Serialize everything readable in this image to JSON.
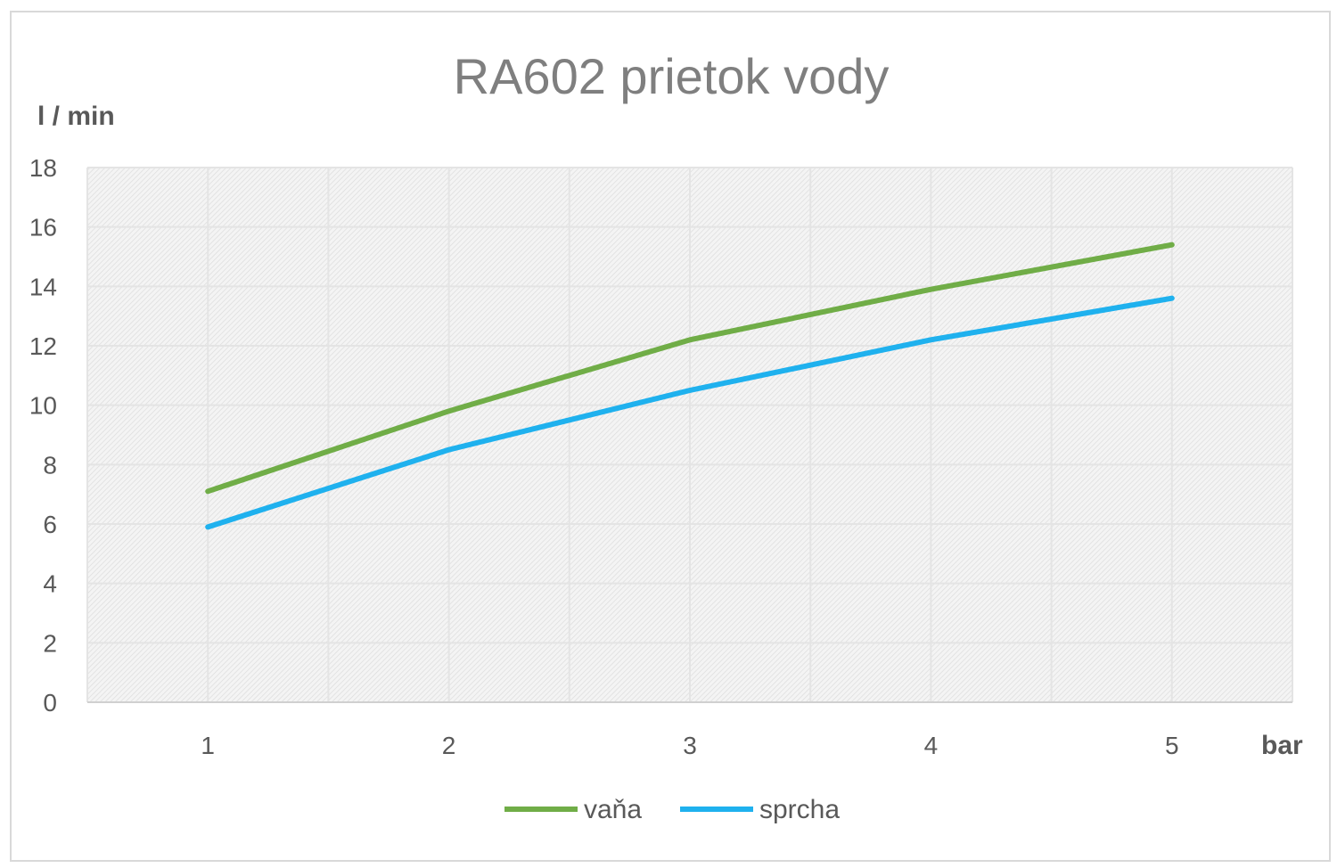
{
  "chart_data": {
    "type": "line",
    "title": "RA602 prietok vody",
    "ylabel": "l / min",
    "xlabel": "bar",
    "categories": [
      "1",
      "2",
      "3",
      "4",
      "5"
    ],
    "ylim": [
      0,
      18
    ],
    "yticks": [
      0,
      2,
      4,
      6,
      8,
      10,
      12,
      14,
      16,
      18
    ],
    "grid": true,
    "legend_position": "bottom",
    "series": [
      {
        "name": "vaňa",
        "color": "#70ad47",
        "values": [
          7.1,
          9.8,
          12.2,
          13.9,
          15.4
        ]
      },
      {
        "name": "sprcha",
        "color": "#1fb1ee",
        "values": [
          5.9,
          8.5,
          10.5,
          12.2,
          13.6
        ]
      }
    ]
  }
}
